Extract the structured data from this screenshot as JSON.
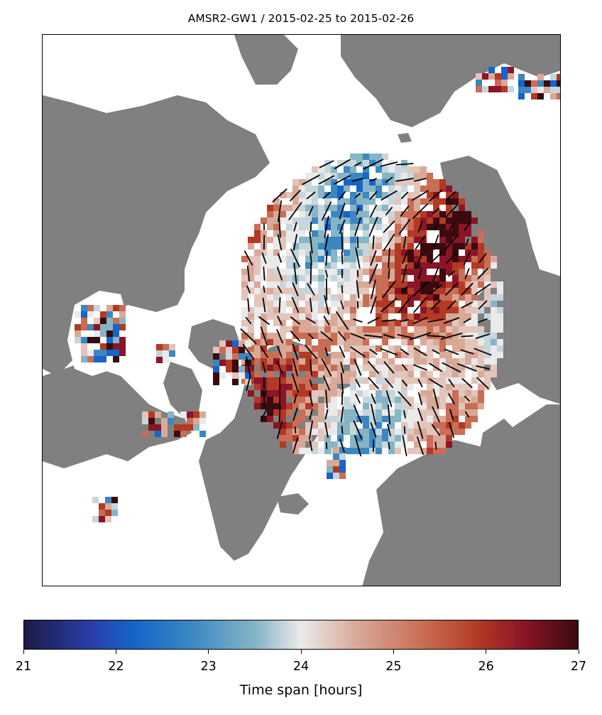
{
  "title": "AMSR2-GW1 / 2015-02-25 to 2015-02-26",
  "colorbar": {
    "label": "Time span [hours]",
    "min": 21,
    "max": 27,
    "ticks": [
      "21",
      "22",
      "23",
      "24",
      "25",
      "26",
      "27"
    ],
    "colors": {
      "low": "#1b1c44",
      "mid": "#eaeaea",
      "high": "#3a0a0e"
    }
  },
  "map": {
    "projection": "north-polar-stereographic",
    "land_color": "#808080",
    "ocean_color": "#ffffff",
    "vector_color": "#000000"
  }
}
